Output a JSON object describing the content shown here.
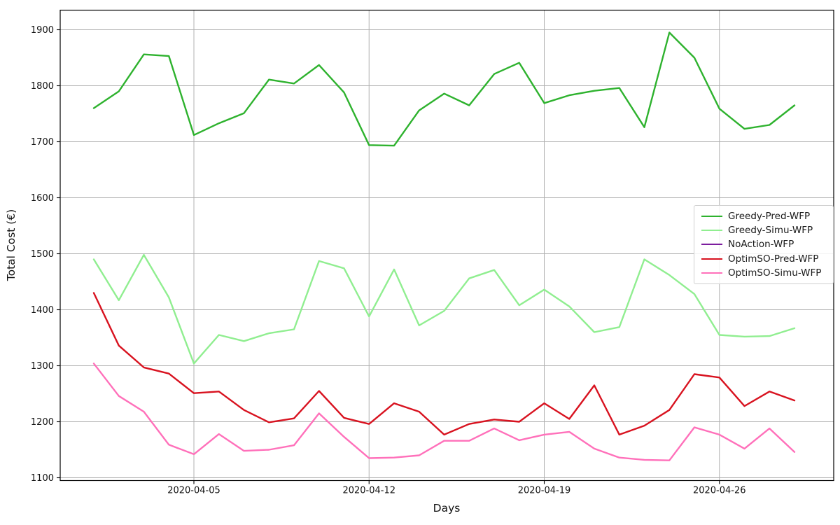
{
  "chart_data": {
    "type": "line",
    "title": "",
    "xlabel": "Days",
    "ylabel": "Total Cost (€)",
    "grid": true,
    "grid_color": "#b0b0b0",
    "legend_position": "center right",
    "ylim": [
      1095,
      1936
    ],
    "y_ticks": [
      1100,
      1200,
      1300,
      1400,
      1500,
      1600,
      1700,
      1800,
      1900
    ],
    "x_tick_labels": [
      "2020-04-05",
      "2020-04-12",
      "2020-04-19",
      "2020-04-26"
    ],
    "x_tick_index": [
      4,
      11,
      18,
      25
    ],
    "x_dates": [
      "2020-04-01",
      "2020-04-02",
      "2020-04-03",
      "2020-04-04",
      "2020-04-05",
      "2020-04-06",
      "2020-04-07",
      "2020-04-08",
      "2020-04-09",
      "2020-04-10",
      "2020-04-11",
      "2020-04-12",
      "2020-04-13",
      "2020-04-14",
      "2020-04-15",
      "2020-04-16",
      "2020-04-17",
      "2020-04-18",
      "2020-04-19",
      "2020-04-20",
      "2020-04-21",
      "2020-04-22",
      "2020-04-23",
      "2020-04-24",
      "2020-04-25",
      "2020-04-26",
      "2020-04-27",
      "2020-04-28",
      "2020-04-29"
    ],
    "series": [
      {
        "name": "Greedy-Pred-WFP",
        "color": "#2eb22e",
        "values": [
          1760,
          1790,
          1856,
          1853,
          1712,
          1733,
          1751,
          1811,
          1804,
          1837,
          1788,
          1694,
          1693,
          1756,
          1786,
          1765,
          1821,
          1841,
          1769,
          1783,
          1791,
          1796,
          1726,
          1895,
          1850,
          1759,
          1723,
          1730,
          1765
        ]
      },
      {
        "name": "Greedy-Simu-WFP",
        "color": "#90ee90",
        "values": [
          1490,
          1417,
          1498,
          1422,
          1304,
          1355,
          1344,
          1358,
          1365,
          1487,
          1474,
          1388,
          1472,
          1372,
          1398,
          1456,
          1471,
          1408,
          1436,
          1406,
          1360,
          1369,
          1490,
          1462,
          1428,
          1355,
          1352,
          1353,
          1367
        ]
      },
      {
        "name": "NoAction-WFP",
        "color": "#7c1d9e",
        "values": null,
        "note": "legend entry only; no line visible in plot area"
      },
      {
        "name": "OptimSO-Pred-WFP",
        "color": "#d8121f",
        "values": [
          1430,
          1336,
          1297,
          1286,
          1251,
          1254,
          1221,
          1199,
          1206,
          1255,
          1207,
          1196,
          1233,
          1218,
          1177,
          1196,
          1204,
          1200,
          1233,
          1205,
          1265,
          1177,
          1193,
          1221,
          1285,
          1279,
          1228,
          1254,
          1238
        ]
      },
      {
        "name": "OptimSO-Simu-WFP",
        "color": "#ff70ba",
        "values": [
          1304,
          1246,
          1218,
          1159,
          1142,
          1178,
          1148,
          1150,
          1158,
          1215,
          1173,
          1135,
          1136,
          1140,
          1166,
          1166,
          1188,
          1167,
          1177,
          1182,
          1152,
          1136,
          1132,
          1131,
          1190,
          1177,
          1152,
          1188,
          1146
        ]
      }
    ]
  }
}
